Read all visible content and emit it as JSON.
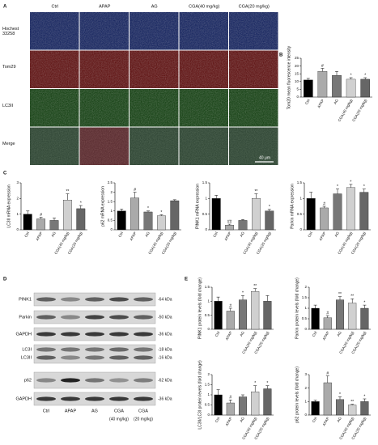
{
  "panel_letters": [
    "A",
    "B",
    "C",
    "D",
    "E"
  ],
  "microscopy": {
    "columns": [
      "Ctrl",
      "APAP",
      "AG",
      "CGA(40 mg/kg)",
      "CGA(20 mg/kg)"
    ],
    "rows": [
      "Hochest 33258",
      "Tom29",
      "LC3II",
      "Merge"
    ],
    "scale_bar": "40 μm"
  },
  "blot": {
    "rows": [
      {
        "label": "PINK1",
        "size": "-64 kDa"
      },
      {
        "label": "Parkin",
        "size": "-50 kDa"
      },
      {
        "label": "GAPDH",
        "size": "-36 kDa"
      },
      {
        "label": "LC3I",
        "size": "-18 kDa"
      },
      {
        "label": "LC3II",
        "size": "-16 kDa"
      },
      {
        "label": "p62",
        "size": "-62 kDa"
      },
      {
        "label": "GAPDH",
        "size": "-36 kDa"
      }
    ],
    "lanes": [
      "Ctrl",
      "APAP",
      "AG",
      "CGA",
      "CGA"
    ],
    "doses": [
      "(40 mg/kg)",
      "(20 mg/kg)"
    ]
  },
  "chart_data": [
    {
      "type": "bar",
      "ylabel": "Tom20 mean fluorescence intensity",
      "categories": [
        "Ctrl",
        "APAP",
        "AG",
        "CGA(40 mg/kg)",
        "CGA(20 mg/kg)"
      ],
      "values": [
        11,
        16.5,
        14,
        11.5,
        11.5
      ],
      "errors": [
        1,
        2,
        2.5,
        1,
        1
      ],
      "annotations": [
        null,
        "#",
        null,
        "*",
        "*"
      ],
      "colors": [
        "#000000",
        "#aaaaaa",
        "#777777",
        "#d0d0d0",
        "#666666"
      ],
      "ylim": [
        0,
        25
      ],
      "yticks": [
        0,
        5,
        10,
        15,
        20,
        25
      ]
    },
    {
      "type": "bar",
      "ylabel": "LC3II mRNA expression",
      "categories": [
        "Ctrl",
        "APAP",
        "AG",
        "CGA(40 mg/kg)",
        "CGA(20 mg/kg)"
      ],
      "values": [
        1,
        0.7,
        0.6,
        1.9,
        1.35
      ],
      "errors": [
        0.2,
        0.1,
        0.15,
        0.4,
        0.2
      ],
      "annotations": [
        null,
        "#",
        null,
        "**",
        "*"
      ],
      "colors": [
        "#000000",
        "#aaaaaa",
        "#777777",
        "#d0d0d0",
        "#666666"
      ],
      "ylim": [
        0,
        3
      ],
      "yticks": [
        0,
        1,
        2,
        3
      ]
    },
    {
      "type": "bar",
      "ylabel": "p62 mRNA expression",
      "categories": [
        "Ctrl",
        "APAP",
        "AG",
        "CGA(40 mg/kg)",
        "CGA(20 mg/kg)"
      ],
      "values": [
        1,
        1.7,
        0.95,
        0.75,
        1.55
      ],
      "errors": [
        0.1,
        0.3,
        0.05,
        0.05,
        0.05
      ],
      "annotations": [
        null,
        "#",
        "*",
        "*",
        null
      ],
      "colors": [
        "#000000",
        "#aaaaaa",
        "#777777",
        "#d0d0d0",
        "#666666"
      ],
      "ylim": [
        0,
        2.5
      ],
      "yticks": [
        0,
        0.5,
        1,
        1.5,
        2,
        2.5
      ]
    },
    {
      "type": "bar",
      "ylabel": "PINK1 mRNA expression",
      "categories": [
        "Ctrl",
        "APAP",
        "AG",
        "CGA(40 mg/kg)",
        "CGA(20 mg/kg)"
      ],
      "values": [
        1,
        0.15,
        0.3,
        1,
        0.6
      ],
      "errors": [
        0.1,
        0.03,
        0.03,
        0.15,
        0.05
      ],
      "annotations": [
        null,
        "##",
        null,
        "**",
        "*"
      ],
      "colors": [
        "#000000",
        "#aaaaaa",
        "#777777",
        "#d0d0d0",
        "#666666"
      ],
      "ylim": [
        0,
        1.5
      ],
      "yticks": [
        0,
        0.5,
        1,
        1.5
      ]
    },
    {
      "type": "bar",
      "ylabel": "Parkin mRNA expression",
      "categories": [
        "Ctrl",
        "APAP",
        "AG",
        "CGA(40 mg/kg)",
        "CGA(20 mg/kg)"
      ],
      "values": [
        1,
        0.7,
        1.15,
        1.35,
        1.2
      ],
      "errors": [
        0.2,
        0.05,
        0.15,
        0.1,
        0.1
      ],
      "annotations": [
        null,
        "#",
        "*",
        "*",
        "*"
      ],
      "colors": [
        "#000000",
        "#aaaaaa",
        "#777777",
        "#d0d0d0",
        "#666666"
      ],
      "ylim": [
        0,
        1.5
      ],
      "yticks": [
        0,
        0.5,
        1,
        1.5
      ]
    },
    {
      "type": "bar",
      "ylabel": "PINK1 protein levels (fold change)",
      "categories": [
        "Ctrl",
        "APAP",
        "AG",
        "CGA(40 mg/kg)",
        "CGA(20 mg/kg)"
      ],
      "values": [
        1,
        0.65,
        1.05,
        1.35,
        1
      ],
      "errors": [
        0.15,
        0.1,
        0.15,
        0.1,
        0.2
      ],
      "annotations": [
        null,
        "#",
        "*",
        "**",
        null
      ],
      "colors": [
        "#000000",
        "#aaaaaa",
        "#777777",
        "#d0d0d0",
        "#666666"
      ],
      "ylim": [
        0,
        1.5
      ],
      "yticks": [
        0,
        0.5,
        1,
        1.5
      ]
    },
    {
      "type": "bar",
      "ylabel": "Parkin protein levels (fold change)",
      "categories": [
        "Ctrl",
        "APAP",
        "AG",
        "CGA(40 mg/kg)",
        "CGA(20 mg/kg)"
      ],
      "values": [
        1,
        0.55,
        1.4,
        1.25,
        1
      ],
      "errors": [
        0.15,
        0.1,
        0.15,
        0.2,
        0.15
      ],
      "annotations": [
        null,
        "#",
        "**",
        "**",
        "*"
      ],
      "colors": [
        "#000000",
        "#aaaaaa",
        "#777777",
        "#d0d0d0",
        "#666666"
      ],
      "ylim": [
        0,
        2
      ],
      "yticks": [
        0,
        0.5,
        1,
        1.5,
        2
      ]
    },
    {
      "type": "bar",
      "ylabel": "LC3II/LC3I protein levels (fold change)",
      "categories": [
        "Ctrl",
        "APAP",
        "AG",
        "CGA(40 mg/kg)",
        "CGA(20 mg/kg)"
      ],
      "values": [
        1,
        0.6,
        0.9,
        1.15,
        1.3
      ],
      "errors": [
        0.25,
        0.15,
        0.1,
        0.3,
        0.15
      ],
      "annotations": [
        null,
        "#",
        null,
        "*",
        "*"
      ],
      "colors": [
        "#000000",
        "#aaaaaa",
        "#777777",
        "#d0d0d0",
        "#666666"
      ],
      "ylim": [
        0,
        2
      ],
      "yticks": [
        0,
        0.5,
        1,
        1.5,
        2
      ]
    },
    {
      "type": "bar",
      "ylabel": "p62 protein levels (fold change)",
      "categories": [
        "Ctrl",
        "APAP",
        "AG",
        "CGA(40 mg/kg)",
        "CGA(20 mg/kg)"
      ],
      "values": [
        1,
        2.4,
        1.15,
        0.75,
        1
      ],
      "errors": [
        0.1,
        0.5,
        0.2,
        0.05,
        0.2
      ],
      "annotations": [
        null,
        "#",
        "*",
        "**",
        "*"
      ],
      "colors": [
        "#000000",
        "#aaaaaa",
        "#777777",
        "#d0d0d0",
        "#666666"
      ],
      "ylim": [
        0,
        3
      ],
      "yticks": [
        0,
        1,
        2,
        3
      ]
    }
  ]
}
